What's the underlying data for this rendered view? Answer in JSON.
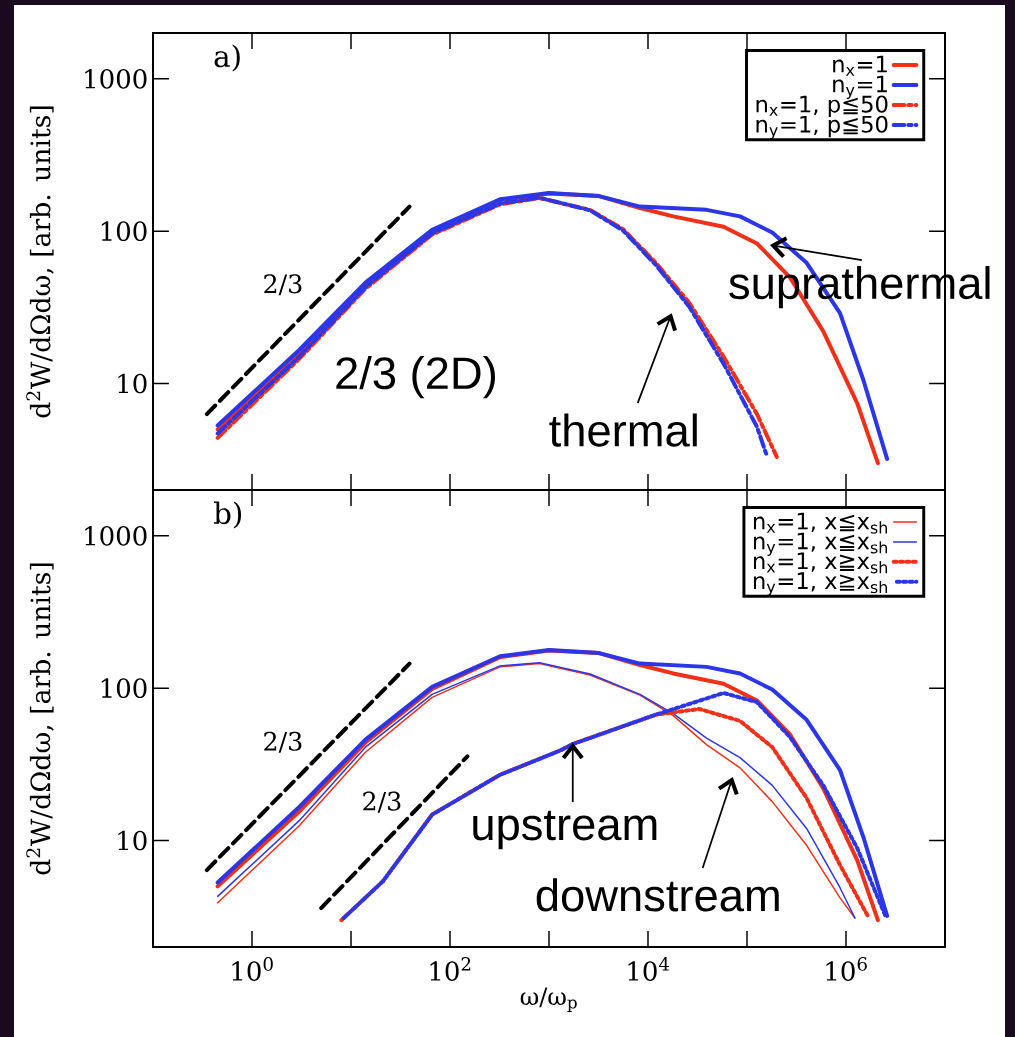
{
  "chart_data": [
    {
      "type": "line",
      "log": "xy",
      "legend": "top right",
      "tick_labels": "y",
      "ylabel": "d$^{2}$W/dΩdω, [arb. units]",
      "xlim": [
        0.1,
        10000000
      ],
      "ylim": [
        2,
        2000
      ],
      "xticks": [
        {
          "value": 1,
          "label": null
        },
        {
          "value": 10,
          "label": null
        },
        {
          "value": 100,
          "label": null
        },
        {
          "value": 1000,
          "label": null
        },
        {
          "value": 10000,
          "label": null
        },
        {
          "value": 100000,
          "label": null
        },
        {
          "value": 1000000,
          "label": null
        }
      ],
      "yticks": [
        10,
        100,
        1000
      ],
      "annotations": [
        "a)",
        "2/3",
        "2/3 (2D)",
        "thermal",
        "suprathermal"
      ],
      "series": [
        {
          "name": "n$_{x}$=1",
          "color": "#f03018",
          "line_style": "solid",
          "x": [
            0.45,
            3.0,
            14,
            66,
            320,
            1000,
            3200,
            8300,
            18000,
            58000,
            126000,
            270000,
            590000,
            1300000,
            2100000
          ],
          "values": [
            5.0,
            15.5,
            44,
            99,
            160,
            177,
            170,
            142,
            125,
            107,
            83,
            50,
            22,
            7.4,
            3.0
          ]
        },
        {
          "name": "n$_{y}$=1",
          "color": "#2b36e8",
          "line_style": "solid",
          "x": [
            0.45,
            3.0,
            14,
            66,
            320,
            1000,
            3200,
            8300,
            39000,
            85000,
            180000,
            400000,
            870000,
            1500000,
            2600000
          ],
          "values": [
            5.3,
            16.6,
            46,
            102,
            162,
            178,
            170,
            145,
            138,
            125,
            98,
            62,
            29,
            10.5,
            3.2
          ]
        },
        {
          "name": "n$_{x}$=1, p≦50",
          "color": "#f03018",
          "line_style": "dashdot",
          "x": [
            0.45,
            3.0,
            14,
            66,
            320,
            800,
            2600,
            5600,
            12000,
            26000,
            58000,
            126000,
            200000
          ],
          "values": [
            4.4,
            14.5,
            42,
            95,
            150,
            165,
            138,
            103,
            62,
            34,
            15,
            6.3,
            3.3
          ]
        },
        {
          "name": "n$_{y}$=1, p≦50",
          "color": "#2b36e8",
          "line_style": "dashdot",
          "x": [
            0.45,
            3.0,
            14,
            66,
            320,
            800,
            2600,
            5600,
            12000,
            26000,
            58000,
            126000,
            160000
          ],
          "values": [
            4.7,
            15,
            43,
            97,
            152,
            166,
            137,
            101,
            60,
            32,
            13.5,
            5.2,
            3.3
          ]
        },
        {
          "color": "#000000",
          "line_style": "dashed",
          "x": [
            0.35,
            39
          ],
          "values": [
            6.3,
            145
          ]
        }
      ]
    },
    {
      "type": "line",
      "log": "xy",
      "legend": "top right",
      "xlabel": "ω/ω$_{p}$",
      "ylabel": "d$^{2}$W/dΩdω, [arb. units]",
      "xlim": [
        0.1,
        10000000
      ],
      "ylim": [
        2,
        2000
      ],
      "xticks": [
        {
          "value": 1,
          "label": "10$^{0}$"
        },
        {
          "value": 10,
          "label": null
        },
        {
          "value": 100,
          "label": "10$^{2}$"
        },
        {
          "value": 1000,
          "label": null
        },
        {
          "value": 10000,
          "label": "10$^{4}$"
        },
        {
          "value": 100000,
          "label": null
        },
        {
          "value": 1000000,
          "label": "10$^{6}$"
        }
      ],
      "yticks": [
        10,
        100,
        1000
      ],
      "annotations": [
        "b)",
        "2/3",
        "2/3",
        "upstream",
        "downstream"
      ],
      "series": [
        {
          "name": "n$_{x}$=1, x≦x$_{sh}$",
          "color": "#f03018",
          "line_style": "solid",
          "x": [
            0.45,
            3.0,
            14,
            66,
            320,
            800,
            2600,
            8300,
            18000,
            39000,
            85000,
            180000,
            400000,
            870000,
            1230000
          ],
          "values": [
            3.9,
            12.5,
            38,
            87,
            138,
            145,
            122,
            90,
            66,
            42.6,
            30,
            18,
            9.3,
            4.2,
            3.1
          ]
        },
        {
          "name": "n$_{y}$=1, x≦x$_{sh}$",
          "color": "#2b36e8",
          "line_style": "solid",
          "x": [
            0.45,
            3.0,
            14,
            66,
            320,
            800,
            2600,
            8300,
            18000,
            39000,
            85000,
            180000,
            400000,
            870000,
            1230000
          ],
          "values": [
            4.3,
            13.5,
            41,
            91,
            140,
            147,
            124,
            91,
            68,
            47,
            35,
            23,
            12,
            4.9,
            3.1
          ]
        },
        {
          "name": "n$_{x}$=1, x≧x$_{sh}$",
          "color": "#f03018",
          "line_style": "dotted",
          "x": [
            8,
            21,
            66,
            320,
            1300,
            1740,
            12000,
            33000,
            85000,
            180000,
            400000,
            870000,
            1660000
          ],
          "values": [
            3.0,
            5.4,
            14.8,
            27,
            39,
            43,
            67,
            73,
            61,
            41,
            19,
            6.9,
            3.2
          ]
        },
        {
          "name": "n$_{y}$=1, x≧x$_{sh}$",
          "color": "#2b36e8",
          "line_style": "dotted",
          "x": [
            8,
            21,
            66,
            320,
            1300,
            1740,
            12000,
            58000,
            126000,
            270000,
            590000,
            1300000,
            2500000
          ],
          "values": [
            3.0,
            5.4,
            14.8,
            27,
            39,
            43,
            67,
            93,
            81,
            48,
            23,
            8.9,
            3.2
          ]
        },
        {
          "color": "#f03018",
          "line_style": "solid",
          "x": [
            0.45,
            3.0,
            14,
            66,
            320,
            1000,
            3200,
            8300,
            18000,
            58000,
            126000,
            270000,
            590000,
            1300000,
            2100000
          ],
          "values": [
            5.0,
            15.5,
            44,
            99,
            160,
            177,
            170,
            142,
            125,
            107,
            83,
            50,
            22,
            7.4,
            3.0
          ]
        },
        {
          "color": "#2b36e8",
          "line_style": "solid",
          "x": [
            0.45,
            3.0,
            14,
            66,
            320,
            1000,
            3200,
            8300,
            39000,
            85000,
            180000,
            400000,
            870000,
            1500000,
            2600000
          ],
          "values": [
            5.3,
            16.6,
            46,
            102,
            162,
            178,
            170,
            145,
            138,
            125,
            98,
            62,
            29,
            10.5,
            3.2
          ]
        },
        {
          "color": "#000000",
          "line_style": "dashed",
          "x": [
            0.35,
            39
          ],
          "values": [
            6.4,
            145
          ]
        },
        {
          "color": "#000000",
          "line_style": "dashed",
          "x": [
            5.0,
            150
          ],
          "values": [
            3.6,
            35.7
          ]
        }
      ]
    }
  ]
}
